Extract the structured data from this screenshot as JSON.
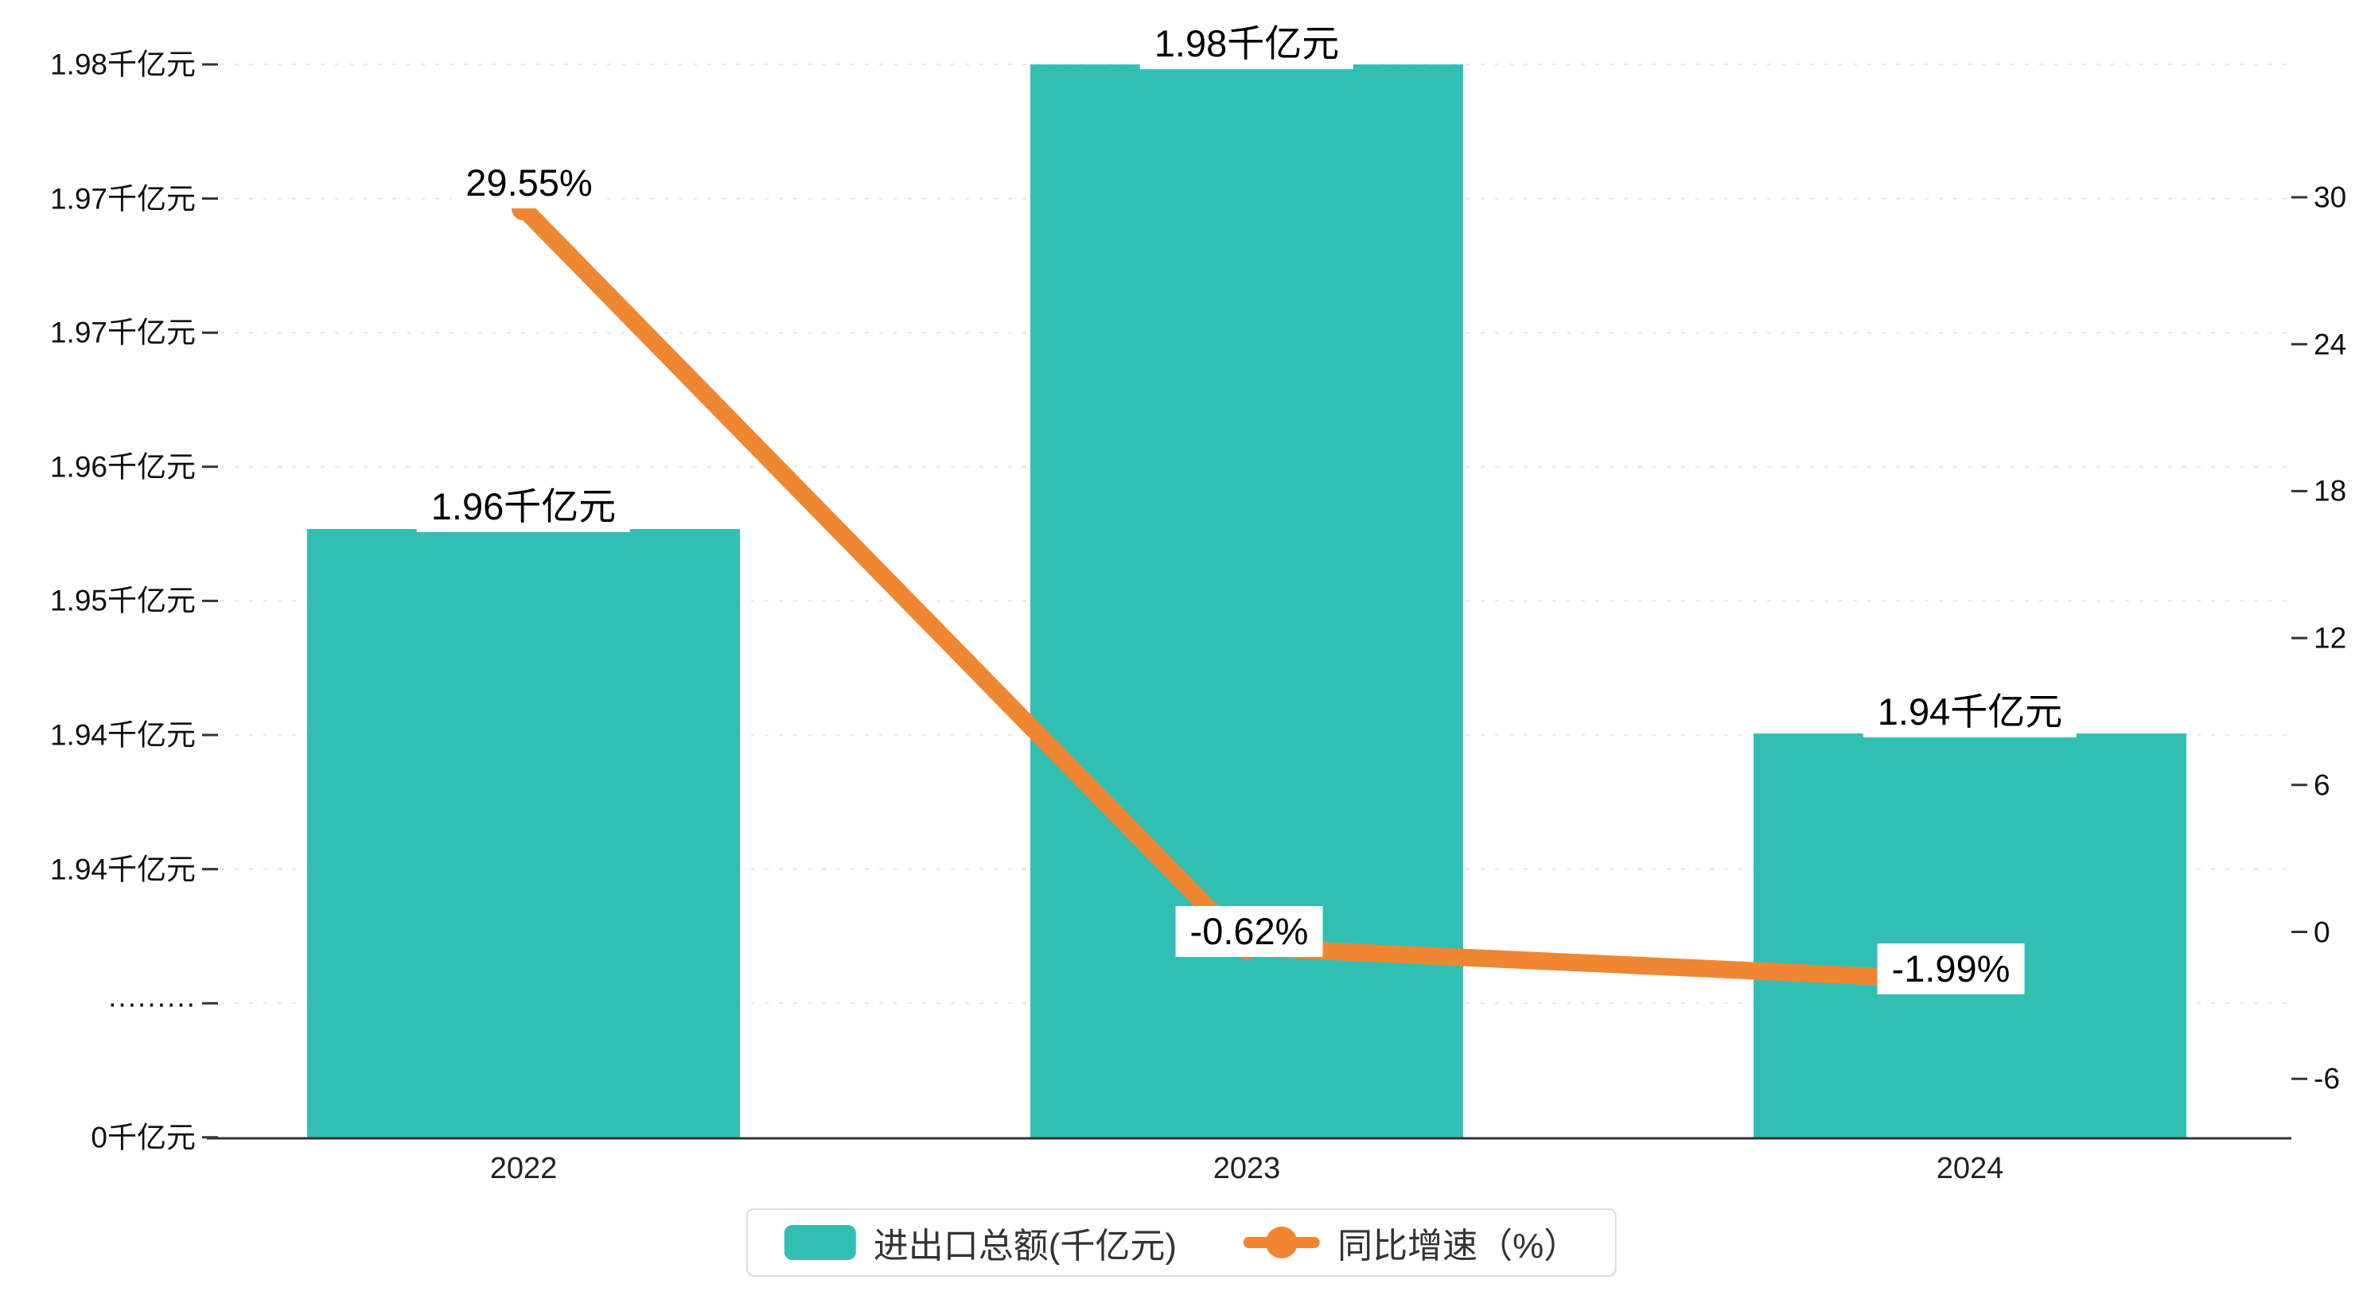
{
  "colors": {
    "bar": "#32bfb3",
    "line": "#ef8632",
    "axis": "#333333",
    "grid": "#e9e9e9",
    "text": "#111111",
    "label_bg": "#ffffff"
  },
  "chart_data": {
    "type": "bar+line",
    "title": "",
    "categories": [
      "2022",
      "2023",
      "2024"
    ],
    "series": [
      {
        "name": "进出口总额(千亿元)",
        "type": "bar",
        "axis": "left",
        "color": "#32bfb3",
        "values": [
          1.96,
          1.98,
          1.94
        ],
        "value_labels": [
          "1.96千亿元",
          "1.98千亿元",
          "1.94千亿元"
        ]
      },
      {
        "name": "同比增速（%）",
        "type": "line",
        "axis": "right",
        "color": "#ef8632",
        "values": [
          29.55,
          -0.62,
          -1.99
        ],
        "value_labels": [
          "29.55%",
          "-0.62%",
          "-1.99%"
        ]
      }
    ],
    "left_axis": {
      "unit": "千亿元",
      "has_break": true,
      "tick_labels": [
        "1.98千亿元",
        "1.97千亿元",
        "1.97千亿元",
        "1.96千亿元",
        "1.95千亿元",
        "1.94千亿元",
        "1.94千亿元",
        "·········",
        "0千亿元"
      ]
    },
    "right_axis": {
      "min": -6,
      "max": 30,
      "tick_interval": 6,
      "tick_labels": [
        "30",
        "24",
        "18",
        "12",
        "6",
        "0",
        "-6"
      ]
    },
    "grid": {
      "horizontal_dotted": true
    },
    "legend": {
      "position": "bottom-center",
      "items": [
        {
          "label": "进出口总额(千亿元)",
          "marker": "bar-swatch"
        },
        {
          "label": "同比增速（%）",
          "marker": "line-dot"
        }
      ]
    }
  }
}
